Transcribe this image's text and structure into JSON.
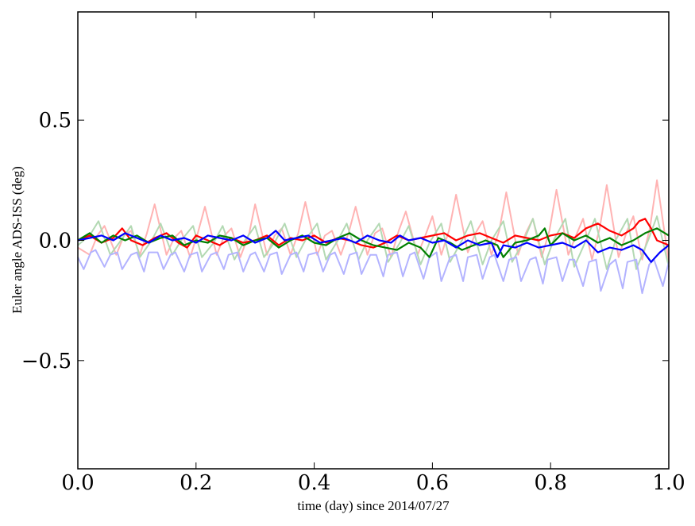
{
  "chart_data": {
    "type": "line",
    "title": "",
    "xlabel": "time (day) since 2014/07/27",
    "ylabel": "Euler angle ADS-ISS (deg)",
    "xlim": [
      0.0,
      1.0
    ],
    "ylim": [
      -0.95,
      0.95
    ],
    "grid": false,
    "x_ticks": [
      {
        "value": 0.0,
        "label": "0.0"
      },
      {
        "value": 0.2,
        "label": "0.2"
      },
      {
        "value": 0.4,
        "label": "0.4"
      },
      {
        "value": 0.6,
        "label": "0.6"
      },
      {
        "value": 0.8,
        "label": "0.8"
      },
      {
        "value": 1.0,
        "label": "1.0"
      }
    ],
    "y_ticks": [
      {
        "value": 0.5,
        "label": "0.5"
      },
      {
        "value": 0.0,
        "label": "0.0"
      },
      {
        "value": -0.5,
        "label": "−0.5"
      }
    ],
    "series": [
      {
        "color": "#ffb3b3",
        "x": [
          0.0,
          0.02,
          0.033,
          0.045,
          0.065,
          0.078,
          0.09,
          0.105,
          0.117,
          0.13,
          0.15,
          0.163,
          0.175,
          0.19,
          0.203,
          0.215,
          0.235,
          0.248,
          0.26,
          0.275,
          0.29,
          0.3,
          0.32,
          0.333,
          0.345,
          0.36,
          0.373,
          0.385,
          0.405,
          0.418,
          0.43,
          0.445,
          0.458,
          0.47,
          0.49,
          0.503,
          0.515,
          0.53,
          0.543,
          0.555,
          0.575,
          0.588,
          0.6,
          0.615,
          0.628,
          0.64,
          0.66,
          0.673,
          0.685,
          0.7,
          0.713,
          0.725,
          0.745,
          0.758,
          0.77,
          0.785,
          0.798,
          0.81,
          0.83,
          0.843,
          0.855,
          0.87,
          0.883,
          0.895,
          0.915,
          0.928,
          0.94,
          0.955,
          0.968,
          0.98,
          1.0
        ],
        "y": [
          -0.03,
          -0.06,
          0.02,
          0.06,
          -0.06,
          0.02,
          0.04,
          -0.06,
          0.03,
          0.15,
          -0.06,
          0.01,
          0.04,
          -0.07,
          0.03,
          0.14,
          -0.06,
          0.02,
          0.05,
          -0.07,
          0.03,
          0.15,
          -0.06,
          0.02,
          0.05,
          -0.06,
          0.03,
          0.16,
          -0.06,
          0.02,
          0.04,
          -0.06,
          0.03,
          0.14,
          -0.06,
          0.03,
          0.05,
          -0.07,
          0.04,
          0.12,
          -0.06,
          0.02,
          0.1,
          -0.06,
          0.04,
          0.19,
          -0.05,
          0.03,
          0.08,
          -0.06,
          0.04,
          0.2,
          -0.06,
          0.03,
          0.09,
          -0.07,
          0.04,
          0.21,
          -0.06,
          0.02,
          0.09,
          -0.08,
          0.05,
          0.23,
          -0.07,
          0.03,
          0.1,
          -0.08,
          0.05,
          0.25,
          -0.09
        ]
      },
      {
        "color": "#b3d9b3",
        "x": [
          0.0,
          0.02,
          0.035,
          0.055,
          0.07,
          0.09,
          0.105,
          0.125,
          0.14,
          0.16,
          0.175,
          0.195,
          0.21,
          0.23,
          0.245,
          0.265,
          0.28,
          0.3,
          0.315,
          0.335,
          0.35,
          0.37,
          0.385,
          0.405,
          0.42,
          0.44,
          0.455,
          0.475,
          0.49,
          0.51,
          0.525,
          0.545,
          0.56,
          0.58,
          0.595,
          0.615,
          0.63,
          0.65,
          0.665,
          0.685,
          0.7,
          0.72,
          0.735,
          0.755,
          0.77,
          0.79,
          0.805,
          0.825,
          0.84,
          0.86,
          0.875,
          0.895,
          0.91,
          0.93,
          0.945,
          0.965,
          0.98,
          1.0
        ],
        "y": [
          -0.02,
          0.02,
          0.08,
          -0.06,
          -0.01,
          0.06,
          -0.07,
          0.0,
          0.07,
          -0.06,
          0.0,
          0.06,
          -0.07,
          -0.01,
          0.06,
          -0.08,
          -0.01,
          0.06,
          -0.07,
          0.0,
          0.07,
          -0.07,
          0.0,
          0.07,
          -0.08,
          0.0,
          0.07,
          -0.08,
          0.0,
          0.07,
          -0.09,
          -0.01,
          0.06,
          -0.1,
          -0.01,
          0.07,
          -0.09,
          0.0,
          0.08,
          -0.1,
          0.0,
          0.08,
          -0.09,
          0.0,
          0.09,
          -0.1,
          0.0,
          0.09,
          -0.11,
          0.0,
          0.09,
          -0.12,
          0.0,
          0.09,
          -0.12,
          0.0,
          0.1,
          -0.11
        ]
      },
      {
        "color": "#b3b3ff",
        "x": [
          0.0,
          0.01,
          0.022,
          0.03,
          0.045,
          0.055,
          0.067,
          0.075,
          0.09,
          0.1,
          0.112,
          0.12,
          0.135,
          0.145,
          0.157,
          0.165,
          0.18,
          0.19,
          0.202,
          0.21,
          0.225,
          0.235,
          0.247,
          0.255,
          0.27,
          0.28,
          0.292,
          0.3,
          0.315,
          0.325,
          0.337,
          0.345,
          0.36,
          0.37,
          0.382,
          0.39,
          0.405,
          0.415,
          0.427,
          0.435,
          0.45,
          0.46,
          0.472,
          0.48,
          0.495,
          0.505,
          0.517,
          0.525,
          0.54,
          0.55,
          0.562,
          0.57,
          0.585,
          0.595,
          0.607,
          0.615,
          0.63,
          0.64,
          0.652,
          0.66,
          0.675,
          0.685,
          0.697,
          0.705,
          0.72,
          0.73,
          0.742,
          0.75,
          0.765,
          0.775,
          0.787,
          0.795,
          0.81,
          0.82,
          0.832,
          0.84,
          0.855,
          0.865,
          0.877,
          0.885,
          0.9,
          0.91,
          0.922,
          0.93,
          0.945,
          0.955,
          0.967,
          0.975,
          0.99,
          1.0
        ],
        "y": [
          -0.07,
          -0.12,
          -0.05,
          -0.04,
          -0.11,
          -0.06,
          -0.05,
          -0.12,
          -0.06,
          -0.05,
          -0.13,
          -0.05,
          -0.05,
          -0.12,
          -0.06,
          -0.05,
          -0.13,
          -0.06,
          -0.05,
          -0.13,
          -0.06,
          -0.05,
          -0.12,
          -0.06,
          -0.05,
          -0.13,
          -0.06,
          -0.05,
          -0.13,
          -0.06,
          -0.05,
          -0.14,
          -0.06,
          -0.05,
          -0.13,
          -0.06,
          -0.05,
          -0.13,
          -0.06,
          -0.05,
          -0.14,
          -0.06,
          -0.05,
          -0.14,
          -0.06,
          -0.06,
          -0.15,
          -0.06,
          -0.05,
          -0.15,
          -0.06,
          -0.05,
          -0.16,
          -0.07,
          -0.05,
          -0.17,
          -0.07,
          -0.06,
          -0.17,
          -0.07,
          -0.06,
          -0.16,
          -0.07,
          -0.06,
          -0.17,
          -0.08,
          -0.07,
          -0.17,
          -0.08,
          -0.07,
          -0.18,
          -0.08,
          -0.07,
          -0.17,
          -0.08,
          -0.08,
          -0.19,
          -0.09,
          -0.08,
          -0.21,
          -0.1,
          -0.08,
          -0.2,
          -0.09,
          -0.08,
          -0.22,
          -0.1,
          -0.08,
          -0.19,
          -0.09
        ]
      },
      {
        "color": "#ff0000",
        "x": [
          0.0,
          0.02,
          0.04,
          0.06,
          0.075,
          0.09,
          0.11,
          0.13,
          0.15,
          0.17,
          0.185,
          0.2,
          0.22,
          0.24,
          0.26,
          0.28,
          0.3,
          0.32,
          0.34,
          0.36,
          0.38,
          0.4,
          0.42,
          0.44,
          0.46,
          0.48,
          0.5,
          0.52,
          0.54,
          0.56,
          0.58,
          0.6,
          0.62,
          0.64,
          0.66,
          0.68,
          0.7,
          0.72,
          0.74,
          0.76,
          0.78,
          0.8,
          0.82,
          0.84,
          0.86,
          0.87,
          0.88,
          0.9,
          0.92,
          0.94,
          0.95,
          0.96,
          0.97,
          0.98,
          1.0
        ],
        "y": [
          0.0,
          0.02,
          -0.01,
          0.01,
          0.05,
          0.0,
          -0.02,
          0.01,
          0.03,
          -0.01,
          -0.03,
          0.02,
          0.0,
          -0.02,
          0.01,
          -0.01,
          0.0,
          0.02,
          -0.02,
          0.01,
          0.0,
          0.02,
          -0.01,
          0.01,
          0.0,
          -0.02,
          -0.03,
          -0.01,
          0.02,
          0.0,
          0.01,
          0.02,
          0.03,
          0.0,
          0.02,
          0.03,
          0.01,
          -0.01,
          0.02,
          0.01,
          0.0,
          0.02,
          0.03,
          0.01,
          0.05,
          0.06,
          0.07,
          0.04,
          0.02,
          0.05,
          0.08,
          0.09,
          0.05,
          0.0,
          -0.02
        ]
      },
      {
        "color": "#008000",
        "x": [
          0.0,
          0.02,
          0.04,
          0.06,
          0.08,
          0.1,
          0.12,
          0.14,
          0.16,
          0.18,
          0.2,
          0.22,
          0.24,
          0.26,
          0.28,
          0.3,
          0.32,
          0.34,
          0.36,
          0.38,
          0.4,
          0.42,
          0.44,
          0.46,
          0.48,
          0.5,
          0.52,
          0.54,
          0.56,
          0.58,
          0.595,
          0.61,
          0.63,
          0.65,
          0.67,
          0.69,
          0.71,
          0.72,
          0.74,
          0.76,
          0.78,
          0.79,
          0.8,
          0.82,
          0.84,
          0.86,
          0.88,
          0.9,
          0.92,
          0.94,
          0.96,
          0.98,
          1.0
        ],
        "y": [
          0.0,
          0.03,
          -0.01,
          0.02,
          0.0,
          0.02,
          -0.01,
          0.01,
          0.02,
          -0.02,
          0.0,
          -0.01,
          0.02,
          0.01,
          -0.02,
          0.0,
          0.01,
          -0.03,
          0.0,
          0.02,
          -0.01,
          -0.02,
          0.01,
          0.03,
          0.0,
          -0.02,
          -0.03,
          -0.04,
          -0.01,
          -0.03,
          -0.07,
          0.01,
          -0.01,
          -0.04,
          -0.02,
          0.0,
          -0.02,
          -0.07,
          -0.01,
          0.0,
          0.02,
          0.05,
          -0.02,
          0.03,
          0.0,
          0.02,
          -0.01,
          0.01,
          -0.02,
          0.0,
          0.03,
          0.05,
          0.02
        ]
      },
      {
        "color": "#0000ff",
        "x": [
          0.0,
          0.02,
          0.04,
          0.06,
          0.08,
          0.1,
          0.12,
          0.14,
          0.16,
          0.18,
          0.2,
          0.22,
          0.24,
          0.26,
          0.28,
          0.3,
          0.32,
          0.335,
          0.35,
          0.37,
          0.39,
          0.41,
          0.43,
          0.45,
          0.47,
          0.49,
          0.51,
          0.53,
          0.545,
          0.56,
          0.58,
          0.6,
          0.62,
          0.64,
          0.66,
          0.68,
          0.7,
          0.71,
          0.72,
          0.74,
          0.76,
          0.78,
          0.8,
          0.82,
          0.84,
          0.86,
          0.88,
          0.9,
          0.92,
          0.94,
          0.955,
          0.97,
          0.985,
          1.0
        ],
        "y": [
          0.0,
          0.01,
          0.02,
          0.0,
          0.03,
          0.01,
          -0.01,
          0.02,
          0.0,
          0.01,
          -0.01,
          0.02,
          0.01,
          0.0,
          0.02,
          -0.01,
          0.01,
          0.04,
          0.0,
          0.01,
          0.02,
          -0.01,
          0.0,
          0.01,
          -0.01,
          0.02,
          0.0,
          -0.01,
          0.02,
          0.0,
          0.01,
          -0.01,
          0.0,
          -0.03,
          0.0,
          -0.02,
          -0.01,
          -0.07,
          -0.02,
          -0.03,
          -0.01,
          -0.03,
          -0.02,
          -0.01,
          -0.03,
          0.0,
          -0.05,
          -0.03,
          -0.04,
          -0.02,
          -0.04,
          -0.09,
          -0.05,
          -0.02
        ]
      }
    ]
  }
}
